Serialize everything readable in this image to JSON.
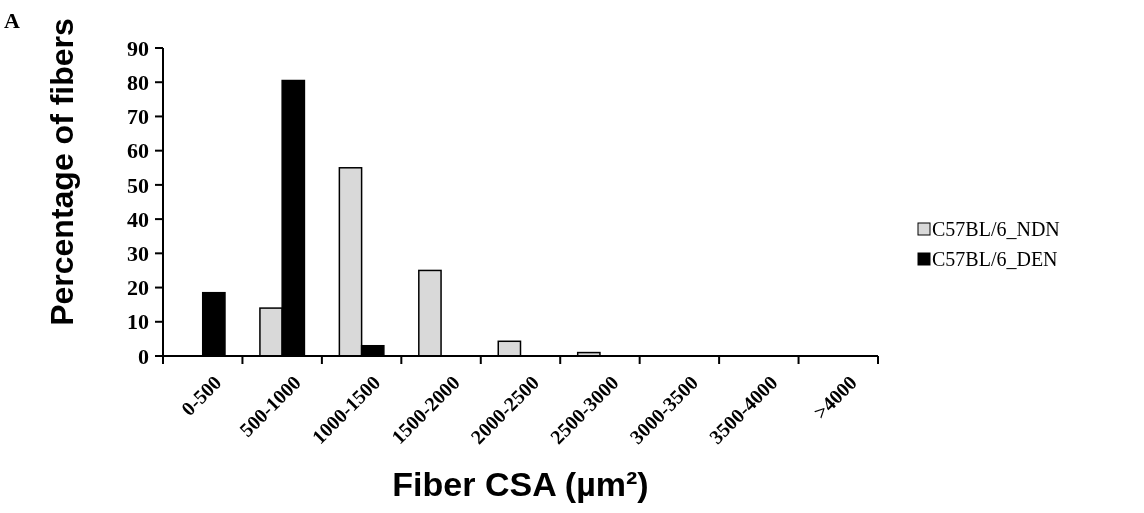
{
  "chart_data": {
    "type": "bar",
    "title": "A",
    "xlabel": "Fiber CSA (µm²)",
    "ylabel": "Percentage of fibers",
    "categories": [
      "0-500",
      "500-1000",
      "1000-1500",
      "1500-2000",
      "2000-2500",
      "2500-3000",
      "3000-3500",
      "3500-4000",
      ">4000"
    ],
    "series": [
      {
        "name": "C57BL/6_NDN",
        "color": "#d9d9d9",
        "values": [
          0,
          14,
          55,
          25,
          4.3,
          1,
          0,
          0,
          0
        ]
      },
      {
        "name": "C57BL/6_DEN",
        "color": "#000000",
        "values": [
          18.5,
          80.5,
          3,
          0,
          0,
          0,
          0,
          0,
          0
        ]
      }
    ],
    "ylim": [
      0,
      90
    ],
    "yticks": [
      0,
      10,
      20,
      30,
      40,
      50,
      60,
      70,
      80,
      90
    ],
    "grid": false,
    "legend": "right"
  }
}
